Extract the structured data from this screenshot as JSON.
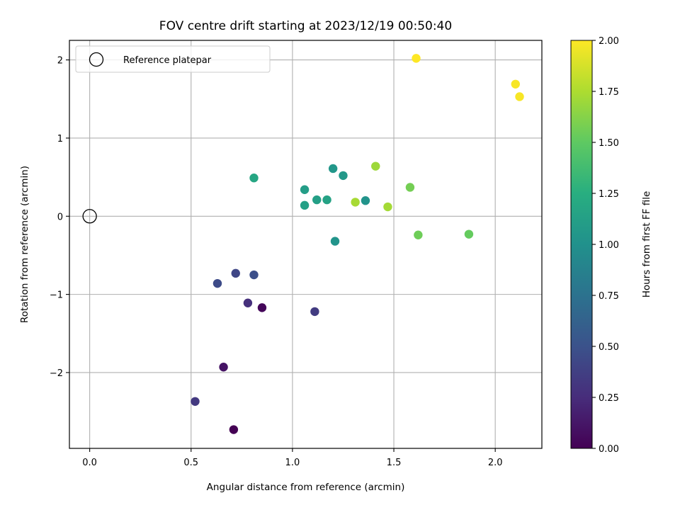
{
  "chart_data": {
    "type": "scatter",
    "title": "FOV centre drift starting at 2023/12/19 00:50:40",
    "xlabel": "Angular distance from reference (arcmin)",
    "ylabel": "Rotation from reference (arcmin)",
    "xlim": [
      -0.1,
      2.23
    ],
    "ylim": [
      -2.97,
      2.25
    ],
    "xticks": [
      0.0,
      0.5,
      1.0,
      1.5,
      2.0
    ],
    "xtick_labels": [
      "0.0",
      "0.5",
      "1.0",
      "1.5",
      "2.0"
    ],
    "yticks": [
      -2,
      -1,
      0,
      1,
      2
    ],
    "ytick_labels": [
      "−2",
      "−1",
      "0",
      "1",
      "2"
    ],
    "grid": true,
    "legend": {
      "placement": "top-left",
      "entries": [
        {
          "label": "Reference platepar",
          "marker": "open-circle",
          "x": 0.0,
          "y": 0.0
        }
      ]
    },
    "colorbar": {
      "label": "Hours from first FF file",
      "colormap": "viridis",
      "range": [
        0.0,
        2.0
      ],
      "ticks": [
        0.0,
        0.25,
        0.5,
        0.75,
        1.0,
        1.25,
        1.5,
        1.75,
        2.0
      ],
      "tick_labels": [
        "0.00",
        "0.25",
        "0.50",
        "0.75",
        "1.00",
        "1.25",
        "1.50",
        "1.75",
        "2.00"
      ]
    },
    "series": [
      {
        "points": [
          {
            "x": 0.71,
            "y": -2.73,
            "hours": 0.0
          },
          {
            "x": 0.85,
            "y": -1.17,
            "hours": 0.03
          },
          {
            "x": 0.66,
            "y": -1.93,
            "hours": 0.1
          },
          {
            "x": 0.78,
            "y": -1.11,
            "hours": 0.27
          },
          {
            "x": 0.52,
            "y": -2.37,
            "hours": 0.33
          },
          {
            "x": 1.11,
            "y": -1.22,
            "hours": 0.35
          },
          {
            "x": 0.72,
            "y": -0.73,
            "hours": 0.42
          },
          {
            "x": 0.63,
            "y": -0.86,
            "hours": 0.45
          },
          {
            "x": 0.81,
            "y": -0.75,
            "hours": 0.48
          },
          {
            "x": 1.21,
            "y": -0.32,
            "hours": 1.03
          },
          {
            "x": 1.36,
            "y": 0.2,
            "hours": 1.03
          },
          {
            "x": 1.2,
            "y": 0.61,
            "hours": 1.05
          },
          {
            "x": 1.25,
            "y": 0.52,
            "hours": 1.06
          },
          {
            "x": 1.06,
            "y": 0.34,
            "hours": 1.1
          },
          {
            "x": 1.12,
            "y": 0.21,
            "hours": 1.12
          },
          {
            "x": 1.06,
            "y": 0.14,
            "hours": 1.13
          },
          {
            "x": 1.17,
            "y": 0.21,
            "hours": 1.15
          },
          {
            "x": 0.81,
            "y": 0.49,
            "hours": 1.18
          },
          {
            "x": 1.87,
            "y": -0.23,
            "hours": 1.52
          },
          {
            "x": 1.62,
            "y": -0.24,
            "hours": 1.55
          },
          {
            "x": 1.58,
            "y": 0.37,
            "hours": 1.57
          },
          {
            "x": 1.41,
            "y": 0.64,
            "hours": 1.7
          },
          {
            "x": 1.47,
            "y": 0.12,
            "hours": 1.72
          },
          {
            "x": 1.31,
            "y": 0.18,
            "hours": 1.73
          },
          {
            "x": 1.61,
            "y": 2.02,
            "hours": 2.0
          },
          {
            "x": 2.1,
            "y": 1.69,
            "hours": 1.98
          },
          {
            "x": 2.12,
            "y": 1.53,
            "hours": 1.98
          }
        ]
      }
    ]
  }
}
